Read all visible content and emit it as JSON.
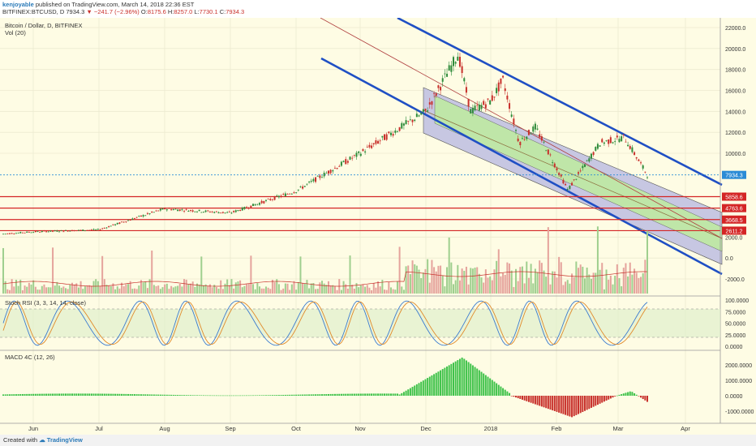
{
  "header": {
    "user": "kenjoyable",
    "published": "published on TradingView.com, March 14, 2018 22:36 EST",
    "symbol": "BITFINEX:BTCUSD, D",
    "last": "7934.3",
    "change": "▼ −241.7 (−2.96%)",
    "o_label": "O:",
    "o": "8175.6",
    "h_label": "H:",
    "h": "8257.0",
    "l_label": "L:",
    "l": "7730.1",
    "c_label": "C:",
    "c": "7934.3"
  },
  "panes": {
    "main_title": "Bitcoin / Dollar, D, BITFINEX",
    "vol_title": "Vol (20)",
    "stoch_title": "Stoch RSI (3, 3, 14, 14, close)",
    "macd_title": "MACD 4C (12, 26)"
  },
  "footer": {
    "created_with": "Created with",
    "brand": "TradingView"
  },
  "colors": {
    "background": "#fefce4",
    "channel_blue": "#1f4fc4",
    "fork_fill": "#c7c7e2",
    "fork_inner": "#bfe6a8",
    "level_red": "#d42525",
    "price_line": "#2a8bd6",
    "up": "#2e8b3a",
    "down": "#c8302b"
  },
  "chart_data": [
    {
      "type": "candlestick",
      "title": "Bitcoin / Dollar, D, BITFINEX",
      "x_ticks": [
        "Jun",
        "Jul",
        "Aug",
        "Sep",
        "Oct",
        "Nov",
        "Dec",
        "2018",
        "Feb",
        "Mar",
        "Apr"
      ],
      "y_ticks": [
        "22000.0",
        "20000.0",
        "18000.0",
        "16000.0",
        "14000.0",
        "12000.0",
        "10000.0",
        "7934.3",
        "5858.6",
        "4763.6",
        "3668.5",
        "2611.2",
        "2000.0",
        "0.0",
        "-2000.0"
      ],
      "last_price": 7934.3,
      "horizontal_levels": [
        5858.6,
        4763.6,
        3668.5,
        2611.2
      ],
      "monthly_close_approx": [
        {
          "month": "Jun",
          "close": 2500
        },
        {
          "month": "Jul",
          "close": 2700
        },
        {
          "month": "Aug",
          "close": 4700
        },
        {
          "month": "Sep",
          "close": 4300
        },
        {
          "month": "Oct",
          "close": 6400
        },
        {
          "month": "Nov",
          "close": 10000
        },
        {
          "month": "Dec",
          "close": 14000
        },
        {
          "month": "2018",
          "close": 10200
        },
        {
          "month": "Feb",
          "close": 10400
        },
        {
          "month": "Mar",
          "close": 7934.3
        }
      ]
    },
    {
      "type": "bar",
      "title": "Vol (20)"
    },
    {
      "type": "line",
      "title": "Stoch RSI (3, 3, 14, 14, close)",
      "y_ticks": [
        "100.0000",
        "75.0000",
        "50.0000",
        "25.0000",
        "0.0000"
      ],
      "bands": [
        80,
        20
      ]
    },
    {
      "type": "bar",
      "title": "MACD 4C (12, 26)",
      "y_ticks": [
        "2000.0000",
        "1000.0000",
        "0.0000",
        "-1000.0000"
      ]
    }
  ]
}
